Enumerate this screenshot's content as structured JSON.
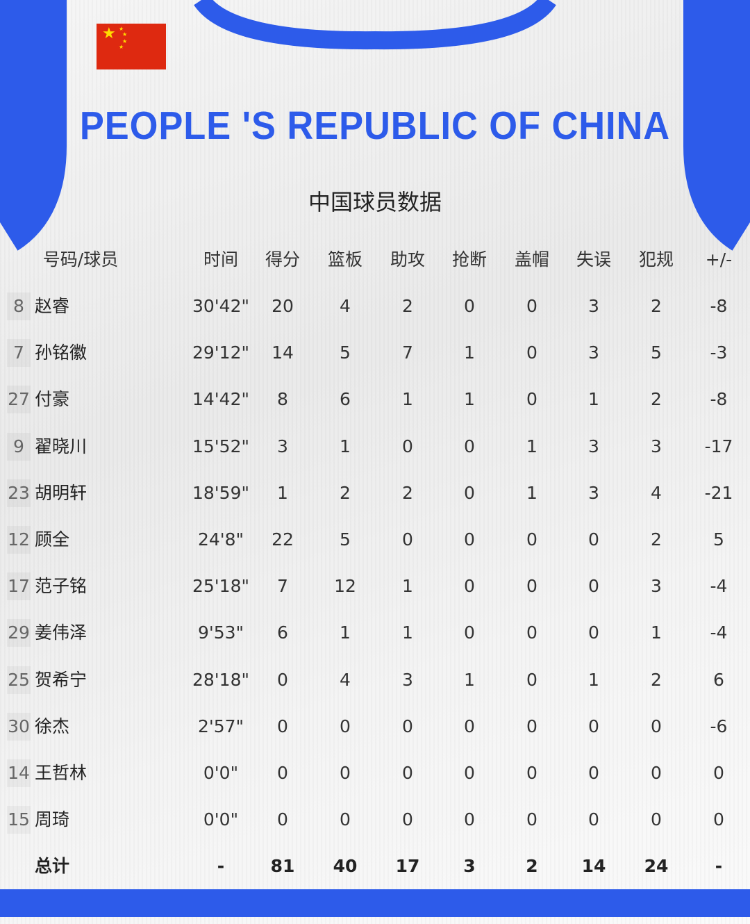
{
  "headline": "PEOPLE 'S REPUBLIC OF CHINA",
  "subtitle": "中国球员数据",
  "colors": {
    "jersey_blue": "#2d5bea",
    "flag_red": "#de2910",
    "flag_star": "#ffde00"
  },
  "columns": [
    "号码/球员",
    "时间",
    "得分",
    "篮板",
    "助攻",
    "抢断",
    "盖帽",
    "失误",
    "犯规",
    "+/-"
  ],
  "players": [
    {
      "number": "8",
      "name": "赵睿",
      "stats": [
        "30'42\"",
        "20",
        "4",
        "2",
        "0",
        "0",
        "3",
        "2",
        "-8"
      ]
    },
    {
      "number": "7",
      "name": "孙铭徽",
      "stats": [
        "29'12\"",
        "14",
        "5",
        "7",
        "1",
        "0",
        "3",
        "5",
        "-3"
      ]
    },
    {
      "number": "27",
      "name": "付豪",
      "stats": [
        "14'42\"",
        "8",
        "6",
        "1",
        "1",
        "0",
        "1",
        "2",
        "-8"
      ]
    },
    {
      "number": "9",
      "name": "翟晓川",
      "stats": [
        "15'52\"",
        "3",
        "1",
        "0",
        "0",
        "1",
        "3",
        "3",
        "-17"
      ]
    },
    {
      "number": "23",
      "name": "胡明轩",
      "stats": [
        "18'59\"",
        "1",
        "2",
        "2",
        "0",
        "1",
        "3",
        "4",
        "-21"
      ]
    },
    {
      "number": "12",
      "name": "顾全",
      "stats": [
        "24'8\"",
        "22",
        "5",
        "0",
        "0",
        "0",
        "0",
        "2",
        "5"
      ]
    },
    {
      "number": "17",
      "name": "范子铭",
      "stats": [
        "25'18\"",
        "7",
        "12",
        "1",
        "0",
        "0",
        "0",
        "3",
        "-4"
      ]
    },
    {
      "number": "29",
      "name": "姜伟泽",
      "stats": [
        "9'53\"",
        "6",
        "1",
        "1",
        "0",
        "0",
        "0",
        "1",
        "-4"
      ]
    },
    {
      "number": "25",
      "name": "贺希宁",
      "stats": [
        "28'18\"",
        "0",
        "4",
        "3",
        "1",
        "0",
        "1",
        "2",
        "6"
      ]
    },
    {
      "number": "30",
      "name": "徐杰",
      "stats": [
        "2'57\"",
        "0",
        "0",
        "0",
        "0",
        "0",
        "0",
        "0",
        "-6"
      ]
    },
    {
      "number": "14",
      "name": "王哲林",
      "stats": [
        "0'0\"",
        "0",
        "0",
        "0",
        "0",
        "0",
        "0",
        "0",
        "0"
      ]
    },
    {
      "number": "15",
      "name": "周琦",
      "stats": [
        "0'0\"",
        "0",
        "0",
        "0",
        "0",
        "0",
        "0",
        "0",
        "0"
      ]
    }
  ],
  "total": {
    "label": "总计",
    "stats": [
      "-",
      "81",
      "40",
      "17",
      "3",
      "2",
      "14",
      "24",
      "-"
    ]
  }
}
